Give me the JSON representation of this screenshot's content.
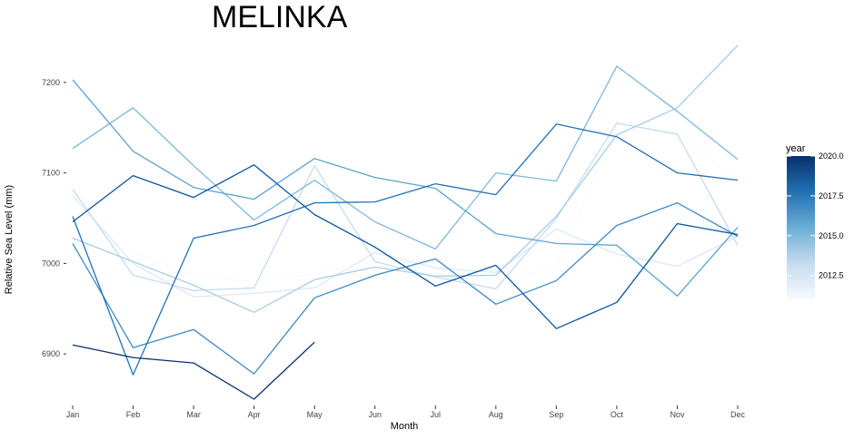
{
  "chart_data": {
    "type": "line",
    "title": "MELINKA",
    "xlabel": "Month",
    "ylabel": "Relative Sea Level (mm)",
    "categories": [
      "Jan",
      "Feb",
      "Mar",
      "Apr",
      "May",
      "Jun",
      "Jul",
      "Aug",
      "Sep",
      "Oct",
      "Nov",
      "Dec"
    ],
    "ylim": [
      6843,
      7243
    ],
    "y_ticks": [
      6900,
      7000,
      7100,
      7200
    ],
    "grid": false,
    "legend": {
      "title": "year",
      "placement": "right",
      "type": "colorbar",
      "range": [
        2011,
        2020
      ],
      "ticks": [
        "2012.5",
        "2015.0",
        "2017.5",
        "2020.0"
      ],
      "colors": [
        "#f7fbff",
        "#c6dbef",
        "#6baed6",
        "#2171b5",
        "#08306b"
      ]
    },
    "series": [
      {
        "year": 2011,
        "color": "#f7fbff",
        "values": [
          7045,
          7013,
          6985,
          6980,
          6988,
          7005,
          6997,
          6985,
          6993,
          7158,
          7146,
          7090
        ]
      },
      {
        "year": 2012,
        "color": "#dce9f6",
        "values": [
          7075,
          7000,
          6963,
          6967,
          6973,
          7012,
          6995,
          6990,
          7038,
          7010,
          6997,
          7030
        ]
      },
      {
        "year": 2013,
        "color": "#c6dbef",
        "values": [
          7082,
          6987,
          6970,
          6973,
          7108,
          7002,
          6985,
          6972,
          7050,
          7155,
          7143,
          7020
        ]
      },
      {
        "year": 2014,
        "color": "#a6cde3",
        "values": [
          7028,
          7002,
          6976,
          6946,
          6982,
          6996,
          6986,
          6987,
          7052,
          7142,
          7172,
          7241
        ]
      },
      {
        "year": 2015,
        "color": "#7fb6dc",
        "values": [
          7127,
          7172,
          7108,
          7048,
          7092,
          7046,
          7016,
          7100,
          7091,
          7218,
          7168,
          7115
        ]
      },
      {
        "year": 2016,
        "color": "#5ba3d0",
        "values": [
          7203,
          7124,
          7084,
          7071,
          7116,
          7095,
          7083,
          7033,
          7022,
          7020,
          6964,
          7040
        ]
      },
      {
        "year": 2017,
        "color": "#3d89c3",
        "values": [
          7022,
          6907,
          6927,
          6878,
          6962,
          6987,
          7005,
          6955,
          6981,
          7042,
          7067,
          7030
        ]
      },
      {
        "year": 2018,
        "color": "#2171b5",
        "values": [
          7052,
          6877,
          7028,
          7042,
          7067,
          7068,
          7088,
          7076,
          7154,
          7140,
          7100,
          7092
        ]
      },
      {
        "year": 2019,
        "color": "#0b559f",
        "values": [
          7046,
          7097,
          7073,
          7109,
          7054,
          7018,
          6975,
          6998,
          6928,
          6957,
          7044,
          7032
        ]
      },
      {
        "year": 2020,
        "color": "#08306b",
        "values": [
          6910,
          6896,
          6890,
          6850,
          6913,
          null,
          null,
          null,
          null,
          null,
          null,
          null
        ]
      }
    ]
  }
}
